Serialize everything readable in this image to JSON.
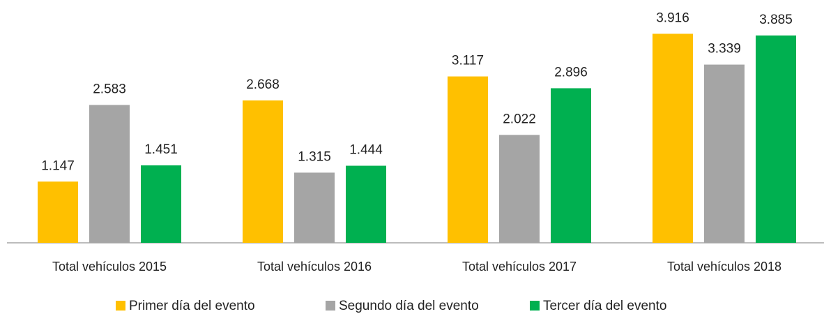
{
  "chart_data": {
    "type": "bar",
    "categories": [
      "Total vehículos 2015",
      "Total vehículos 2016",
      "Total vehículos 2017",
      "Total vehículos 2018"
    ],
    "series": [
      {
        "name": "Primer día del evento",
        "color": "#FFC000",
        "values": [
          1147,
          2668,
          3117,
          3916
        ],
        "value_labels": [
          "1.147",
          "2.668",
          "3.117",
          "3.916"
        ]
      },
      {
        "name": "Segundo día del evento",
        "color": "#A5A5A5",
        "values": [
          2583,
          1315,
          2022,
          3339
        ],
        "value_labels": [
          "2.583",
          "1.315",
          "2.022",
          "3.339"
        ]
      },
      {
        "name": "Tercer día del evento",
        "color": "#00B050",
        "values": [
          1451,
          1444,
          2896,
          3885
        ],
        "value_labels": [
          "1.451",
          "1.444",
          "2.896",
          "3.885"
        ]
      }
    ],
    "ylim": [
      0,
      4000
    ]
  }
}
